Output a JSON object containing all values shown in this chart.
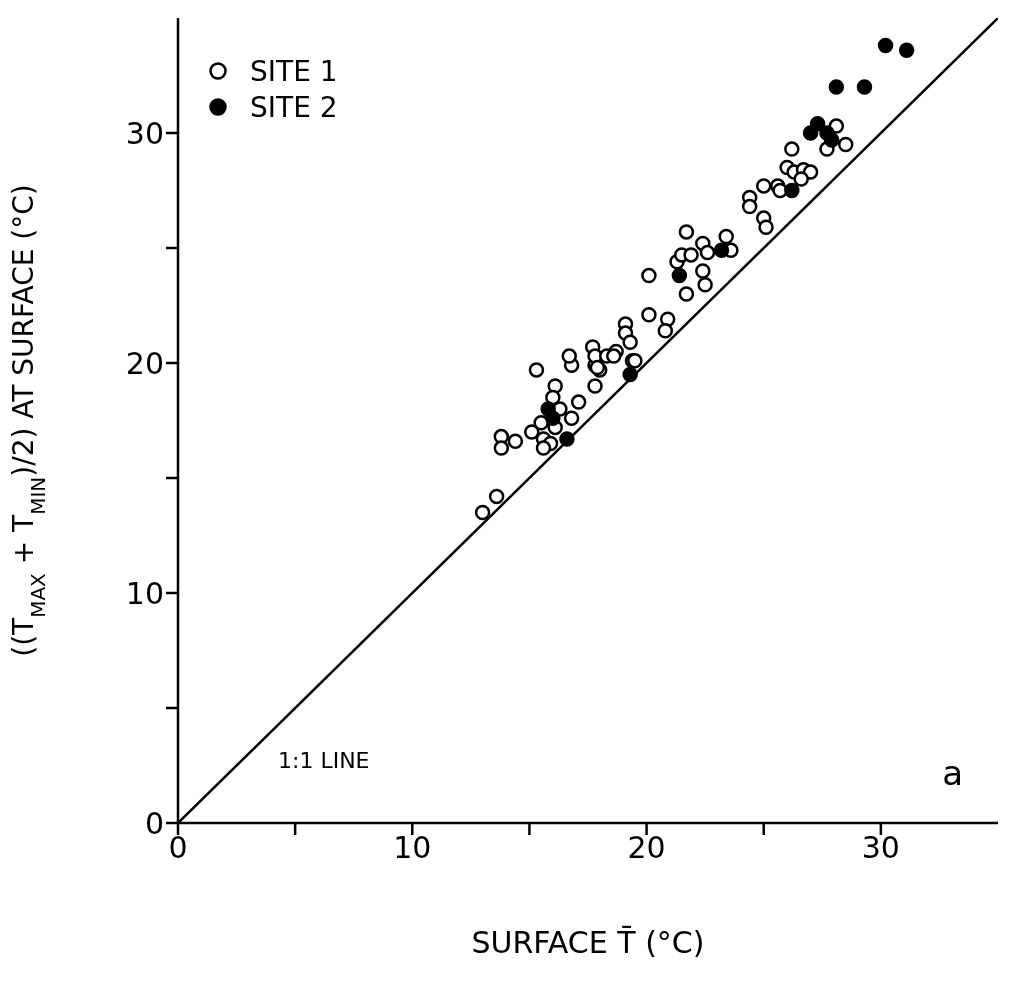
{
  "chart_data": {
    "type": "scatter",
    "xlabel": "SURFACE T̄ (°C)",
    "ylabel": "((T$_{MAX}$ + T$_{MIN}$)/2)  AT SURFACE (°C)",
    "xlim": [
      0,
      35
    ],
    "ylim": [
      0,
      35
    ],
    "xticks": [
      0,
      {
        "value": 5,
        "label": null
      },
      10,
      {
        "value": 15,
        "label": null
      },
      20,
      {
        "value": 25,
        "label": null
      },
      30
    ],
    "yticks": [
      0,
      {
        "value": 5,
        "label": null
      },
      10,
      {
        "value": 15,
        "label": null
      },
      20,
      {
        "value": 25,
        "label": null
      },
      30
    ],
    "grid": false,
    "legend": "top left",
    "marker": "circle",
    "annotations": [
      "1:1 LINE",
      "a"
    ],
    "series": [
      {
        "name": "SITE 1",
        "color": "#ffffff",
        "x": [
          13.0,
          13.6,
          13.8,
          13.8,
          14.4,
          15.1,
          15.5,
          15.3,
          15.6,
          15.9,
          15.6,
          16.1,
          16.0,
          16.3,
          16.1,
          16.8,
          17.1,
          16.8,
          16.7,
          17.8,
          17.8,
          18.0,
          19.4,
          19.1,
          19.1,
          19.3,
          17.7,
          17.8,
          18.3,
          18.7,
          18.6,
          17.9,
          19.5,
          20.1,
          20.1,
          20.9,
          20.8,
          21.3,
          21.5,
          21.9,
          21.7,
          21.7,
          22.4,
          22.6,
          23.4,
          23.6,
          22.4,
          22.5,
          25.0,
          25.1,
          24.4,
          24.4,
          25.0,
          25.6,
          25.7,
          26.0,
          26.3,
          26.7,
          27.0,
          26.6,
          26.2,
          28.1,
          27.7,
          28.5
        ],
        "values": [
          13.5,
          14.2,
          16.8,
          16.3,
          16.6,
          17.0,
          17.4,
          19.7,
          16.7,
          16.5,
          16.3,
          19.0,
          18.5,
          18.0,
          17.2,
          17.6,
          18.3,
          19.9,
          20.3,
          19.0,
          19.9,
          19.7,
          20.1,
          21.7,
          21.3,
          20.9,
          20.7,
          20.3,
          20.3,
          20.5,
          20.3,
          19.8,
          20.1,
          23.8,
          22.1,
          21.9,
          21.4,
          24.4,
          24.7,
          24.7,
          25.7,
          23.0,
          25.2,
          24.8,
          25.5,
          24.9,
          24.0,
          23.4,
          26.3,
          25.9,
          27.2,
          26.8,
          27.7,
          27.7,
          27.5,
          28.5,
          28.3,
          28.4,
          28.3,
          28.0,
          29.3,
          30.3,
          29.3,
          29.5
        ]
      },
      {
        "name": "SITE 2",
        "color": "#000000",
        "x": [
          15.8,
          16.0,
          16.6,
          19.3,
          21.4,
          23.2,
          26.2,
          27.0,
          27.3,
          27.7,
          27.9,
          28.1,
          29.3,
          30.2,
          31.1
        ],
        "values": [
          18.0,
          17.6,
          16.7,
          19.5,
          23.8,
          24.9,
          27.5,
          30.0,
          30.4,
          30.0,
          29.7,
          32.0,
          32.0,
          33.8,
          33.6
        ]
      },
      {
        "type": "line",
        "marker": "none",
        "color": "#000000",
        "x": [
          0,
          35
        ],
        "values": [
          0,
          35
        ]
      }
    ]
  }
}
